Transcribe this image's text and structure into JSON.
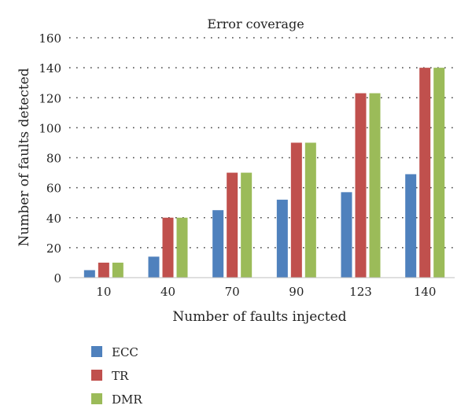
{
  "chart_data": {
    "type": "bar",
    "title": "Error coverage",
    "xlabel": "Number of faults injected",
    "ylabel": "Number of faults detected",
    "categories": [
      "10",
      "40",
      "70",
      "90",
      "123",
      "140"
    ],
    "series": [
      {
        "name": "ECC",
        "color": "#4f81bd",
        "values": [
          5,
          14,
          45,
          52,
          57,
          69
        ]
      },
      {
        "name": "TR",
        "color": "#c0504d",
        "values": [
          10,
          40,
          70,
          90,
          123,
          140
        ]
      },
      {
        "name": "DMR",
        "color": "#9bbb59",
        "values": [
          10,
          40,
          70,
          90,
          123,
          140
        ]
      }
    ],
    "ylim": [
      0,
      160
    ],
    "yticks": [
      "0",
      "20",
      "40",
      "60",
      "80",
      "100",
      "120",
      "140",
      "160"
    ],
    "grid": true,
    "legend": "bottom-left"
  }
}
